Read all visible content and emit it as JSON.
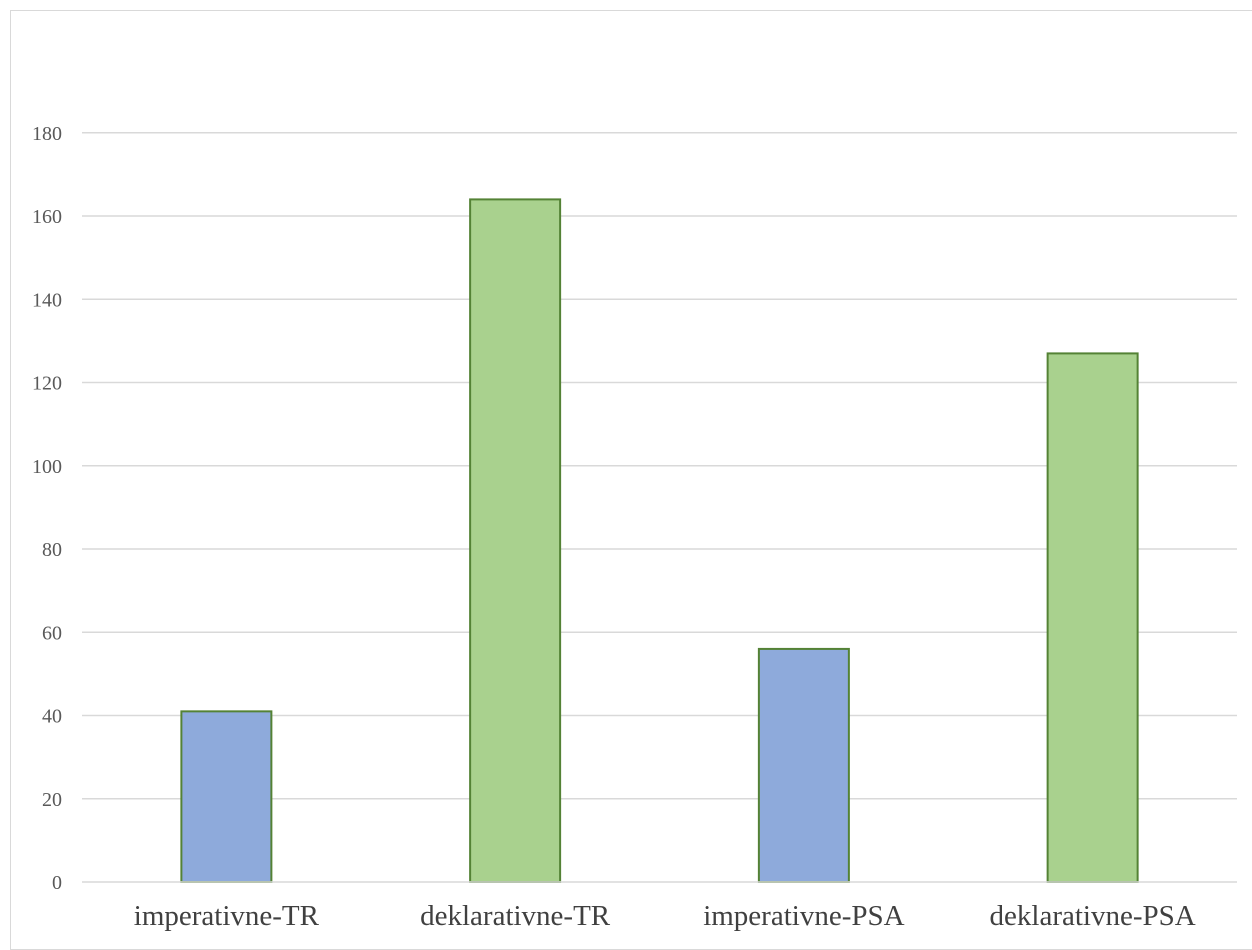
{
  "chart_data": {
    "type": "bar",
    "title": "",
    "xlabel": "",
    "ylabel": "",
    "categories": [
      "imperativne-TR",
      "deklarativne-TR",
      "imperativne-PSA",
      "deklarativne-PSA"
    ],
    "values": [
      41,
      164,
      56,
      127
    ],
    "bar_colors": [
      "#8eaadb",
      "#a9d18e",
      "#8eaadb",
      "#a9d18e"
    ],
    "bar_border_color": "#548235",
    "ylim": [
      0,
      200
    ],
    "yticks": [
      "0",
      "20",
      "40",
      "60",
      "80",
      "100",
      "120",
      "140",
      "160",
      "180"
    ],
    "grid": true,
    "grid_color": "#d9d9d9",
    "legend": "none"
  }
}
